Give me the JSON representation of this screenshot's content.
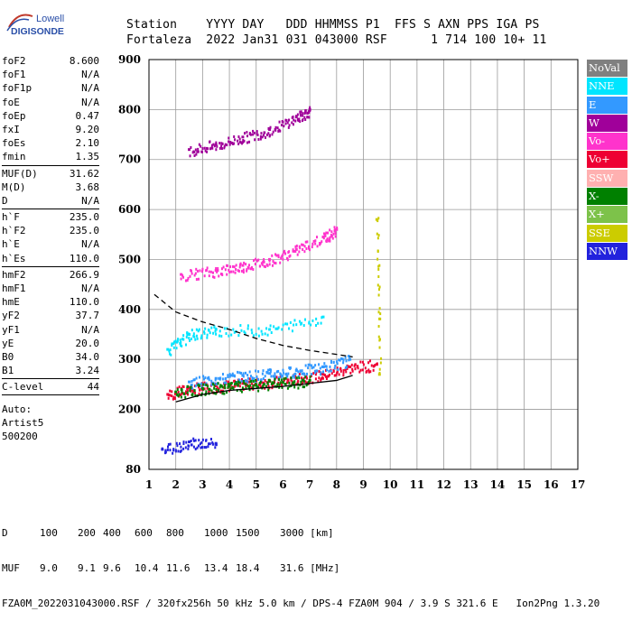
{
  "logo": {
    "line1": "Lowell",
    "line2": "DIGISONDE",
    "colors": {
      "text1": "#2a4fa8",
      "text2": "#2a4fa8",
      "arc1": "#c0392b",
      "arc2": "#2a4fa8"
    }
  },
  "header": {
    "line1": "Station    YYYY DAY   DDD HHMMSS P1  FFS S AXN PPS IGA PS",
    "line2": "Fortaleza  2022 Jan31 031 043000 RSF      1 714 100 10+ 11"
  },
  "params": {
    "group1": [
      {
        "label": "foF2",
        "value": "8.600"
      },
      {
        "label": "foF1",
        "value": "N/A"
      },
      {
        "label": "foF1p",
        "value": "N/A"
      },
      {
        "label": "foE",
        "value": "N/A"
      },
      {
        "label": "foEp",
        "value": "0.47"
      },
      {
        "label": "fxI",
        "value": "9.20"
      },
      {
        "label": "foEs",
        "value": "2.10"
      },
      {
        "label": "fmin",
        "value": "1.35"
      }
    ],
    "group2": [
      {
        "label": "MUF(D)",
        "value": "31.62"
      },
      {
        "label": "M(D)",
        "value": "3.68"
      },
      {
        "label": "D",
        "value": "N/A"
      }
    ],
    "group3": [
      {
        "label": "h`F",
        "value": "235.0"
      },
      {
        "label": "h`F2",
        "value": "235.0"
      },
      {
        "label": "h`E",
        "value": "N/A"
      },
      {
        "label": "h`Es",
        "value": "110.0"
      }
    ],
    "group4": [
      {
        "label": "hmF2",
        "value": "266.9"
      },
      {
        "label": "hmF1",
        "value": "N/A"
      },
      {
        "label": "hmE",
        "value": "110.0"
      },
      {
        "label": "yF2",
        "value": "37.7"
      },
      {
        "label": "yF1",
        "value": "N/A"
      },
      {
        "label": "yE",
        "value": "20.0"
      },
      {
        "label": "B0",
        "value": "34.0"
      },
      {
        "label": "B1",
        "value": "3.24"
      }
    ],
    "clevel": {
      "label": "C-level",
      "value": "44"
    },
    "auto": [
      "Auto:",
      "Artist5",
      "500200"
    ]
  },
  "legend": [
    {
      "label": "NoVal",
      "color": "#808080"
    },
    {
      "label": "NNE",
      "color": "#00e5ff"
    },
    {
      "label": "E",
      "color": "#3399ff"
    },
    {
      "label": "W",
      "color": "#a0009a"
    },
    {
      "label": "Vo-",
      "color": "#ff33cc"
    },
    {
      "label": "Vo+",
      "color": "#ee0033"
    },
    {
      "label": "SSW",
      "color": "#ffb0b0"
    },
    {
      "label": "X-",
      "color": "#008000"
    },
    {
      "label": "X+",
      "color": "#7dc24a"
    },
    {
      "label": "SSE",
      "color": "#cccc00"
    },
    {
      "label": "NNW",
      "color": "#2222dd"
    }
  ],
  "chart_data": {
    "type": "scatter",
    "title": "",
    "xlabel": "",
    "ylabel": "",
    "xlim": [
      1,
      17
    ],
    "ylim": [
      80,
      900
    ],
    "x_ticks": [
      1,
      2,
      3,
      4,
      5,
      6,
      7,
      8,
      9,
      10,
      11,
      12,
      13,
      14,
      15,
      16,
      17
    ],
    "y_ticks": [
      80,
      200,
      300,
      400,
      500,
      600,
      700,
      800,
      900
    ],
    "grid": true,
    "legend_placement": "right",
    "series": [
      {
        "color": "#ee0033",
        "points": [
          [
            1.7,
            230
          ],
          [
            2.5,
            243
          ],
          [
            3.5,
            247
          ],
          [
            4.5,
            252
          ],
          [
            5.5,
            256
          ],
          [
            6.5,
            262
          ],
          [
            7.5,
            270
          ],
          [
            8.5,
            285
          ],
          [
            9.5,
            290
          ]
        ]
      },
      {
        "color": "#3399ff",
        "points": [
          [
            2.5,
            255
          ],
          [
            3.5,
            262
          ],
          [
            4.5,
            268
          ],
          [
            5.5,
            272
          ],
          [
            6.5,
            278
          ],
          [
            7.5,
            285
          ],
          [
            8.5,
            300
          ]
        ]
      },
      {
        "color": "#ff33cc",
        "points": [
          [
            2.2,
            470
          ],
          [
            3.5,
            478
          ],
          [
            4.5,
            488
          ],
          [
            5.5,
            500
          ],
          [
            6.5,
            520
          ],
          [
            7.5,
            545
          ],
          [
            8,
            560
          ]
        ]
      },
      {
        "color": "#a0009a",
        "points": [
          [
            2.5,
            720
          ],
          [
            3.5,
            730
          ],
          [
            4.5,
            745
          ],
          [
            5.5,
            760
          ],
          [
            6.5,
            785
          ],
          [
            7,
            800
          ]
        ]
      },
      {
        "color": "#00e5ff",
        "points": [
          [
            1.7,
            320
          ],
          [
            2.5,
            350
          ],
          [
            3.5,
            360
          ],
          [
            5.5,
            360
          ],
          [
            7.5,
            385
          ]
        ]
      },
      {
        "color": "#2222dd",
        "points": [
          [
            1.5,
            120
          ],
          [
            2.5,
            135
          ],
          [
            3.5,
            132
          ]
        ]
      },
      {
        "color": "#008000",
        "points": [
          [
            2,
            235
          ],
          [
            3,
            242
          ],
          [
            4,
            246
          ],
          [
            5,
            250
          ],
          [
            6,
            254
          ],
          [
            7,
            258
          ]
        ]
      },
      {
        "color": "#cccc00",
        "points": [
          [
            9.5,
            580
          ],
          [
            9.6,
            270
          ]
        ]
      }
    ],
    "curves": [
      {
        "style": "solid",
        "color": "#000000",
        "points": [
          [
            2,
            215
          ],
          [
            3,
            230
          ],
          [
            4,
            238
          ],
          [
            5,
            242
          ],
          [
            6,
            246
          ],
          [
            7,
            252
          ],
          [
            8,
            258
          ],
          [
            8.6,
            268
          ]
        ]
      },
      {
        "style": "dashed",
        "color": "#000000",
        "points": [
          [
            1.2,
            430
          ],
          [
            2,
            395
          ],
          [
            3,
            375
          ],
          [
            4,
            360
          ],
          [
            5,
            342
          ],
          [
            6,
            328
          ],
          [
            7,
            318
          ],
          [
            8,
            310
          ],
          [
            8.6,
            305
          ]
        ]
      }
    ],
    "muf_table": {
      "d_label": "D",
      "d_values": [
        "100",
        "200",
        "400",
        "600",
        "800",
        "1000",
        "1500",
        "3000 [km]"
      ],
      "muf_label": "MUF",
      "muf_values": [
        "9.0",
        "9.1",
        "9.6",
        "10.4",
        "11.6",
        "13.4",
        "18.4",
        "31.6 [MHz]"
      ]
    }
  },
  "footer": {
    "line3": "FZA0M_2022031043000.RSF / 320fx256h 50 kHz 5.0 km / DPS-4 FZA0M 904 / 3.9 S 321.6 E   Ion2Png 1.3.20"
  }
}
